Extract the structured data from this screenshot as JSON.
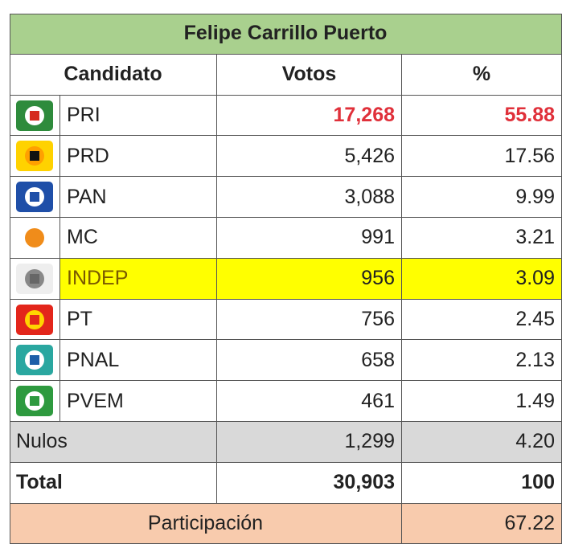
{
  "title": "Felipe Carrillo Puerto",
  "header": [
    "Candidato",
    "Votos",
    "%"
  ],
  "rows": [
    {
      "party": "PRI",
      "votes": "17,268",
      "percent": "55.88"
    },
    {
      "party": "PRD",
      "votes": "5,426",
      "percent": "17.56"
    },
    {
      "party": "PAN",
      "votes": "3,088",
      "percent": "9.99"
    },
    {
      "party": "MC",
      "votes": "991",
      "percent": "3.21"
    },
    {
      "party": "INDEP",
      "votes": "956",
      "percent": "3.09"
    },
    {
      "party": "PT",
      "votes": "756",
      "percent": "2.45"
    },
    {
      "party": "PNAL",
      "votes": "658",
      "percent": "2.13"
    },
    {
      "party": "PVEM",
      "votes": "461",
      "percent": "1.49"
    }
  ],
  "nulos": {
    "label": "Nulos",
    "votes": "1,299",
    "percent": "4.20"
  },
  "total": {
    "label": "Total",
    "votes": "30,903",
    "percent": "100"
  },
  "participation": {
    "label": "Participación",
    "percent": "67.22"
  }
}
